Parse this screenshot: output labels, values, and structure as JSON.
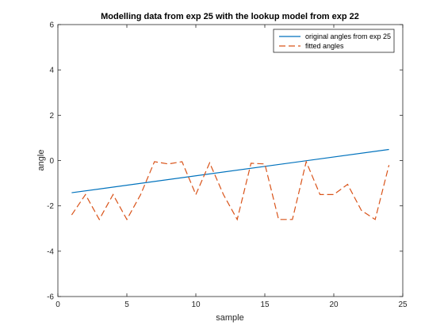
{
  "chart_data": {
    "type": "line",
    "title": "Modelling data from exp 25 with the lookup model from exp 22",
    "xlabel": "sample",
    "ylabel": "angle",
    "xlim": [
      0,
      25
    ],
    "ylim": [
      -6,
      6
    ],
    "xticks": [
      "0",
      "5",
      "10",
      "15",
      "20",
      "25"
    ],
    "yticks": [
      "-6",
      "-4",
      "-2",
      "0",
      "2",
      "4",
      "6"
    ],
    "grid": false,
    "legend_position": "top-right",
    "series": [
      {
        "name": "original angles from exp 25",
        "color": "#0072BD",
        "style": "solid",
        "x": [
          1,
          24
        ],
        "y": [
          -1.42,
          0.49
        ]
      },
      {
        "name": "fitted angles",
        "color": "#D95319",
        "style": "dashed",
        "x": [
          1,
          2,
          3,
          4,
          5,
          6,
          7,
          8,
          9,
          10,
          11,
          12,
          13,
          14,
          15,
          16,
          17,
          18,
          19,
          20,
          21,
          22,
          23,
          24
        ],
        "y": [
          -2.4,
          -1.5,
          -2.6,
          -1.5,
          -2.6,
          -1.5,
          -0.05,
          -0.15,
          -0.05,
          -1.5,
          -0.1,
          -1.5,
          -2.6,
          -0.12,
          -0.15,
          -2.6,
          -2.6,
          -0.05,
          -1.5,
          -1.5,
          -1.05,
          -2.2,
          -2.6,
          -0.2
        ]
      }
    ]
  }
}
